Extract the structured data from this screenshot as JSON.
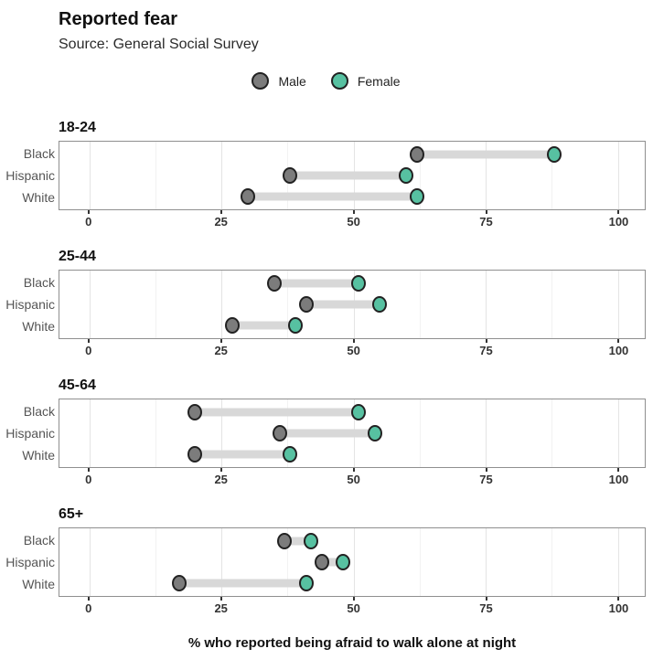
{
  "header": {
    "title": "Reported fear",
    "subtitle": "Source: General Social Survey"
  },
  "legend": {
    "items": [
      {
        "label": "Male",
        "color": "#7c7c7c"
      },
      {
        "label": "Female",
        "color": "#57c1a1"
      }
    ]
  },
  "colors": {
    "male": "#7c7c7c",
    "female": "#57c1a1",
    "dot_border": "#222222",
    "connector": "#d8d8d8",
    "major_grid": "#e4e4e4",
    "minor_grid": "#f2f2f2"
  },
  "axis": {
    "ticks": [
      0,
      25,
      50,
      75,
      100
    ],
    "minor_ticks": [
      12.5,
      37.5,
      62.5,
      87.5
    ],
    "label": "% who reported being afraid to walk alone at night"
  },
  "chart_data": {
    "type": "scatter",
    "subtype": "dumbbell",
    "title": "Reported fear",
    "subtitle": "Source: General Social Survey",
    "xlabel": "% who reported being afraid to walk alone at night",
    "xticks": [
      0,
      25,
      50,
      75,
      100
    ],
    "xlim": [
      -6,
      105
    ],
    "grid": true,
    "legend_position": "top-center",
    "series_names": [
      "Male",
      "Female"
    ],
    "facets": [
      {
        "label": "18-24",
        "categories": [
          "Black",
          "Hispanic",
          "White"
        ],
        "series": [
          {
            "name": "Male",
            "values": [
              62,
              38,
              30
            ]
          },
          {
            "name": "Female",
            "values": [
              88,
              60,
              62
            ]
          }
        ]
      },
      {
        "label": "25-44",
        "categories": [
          "Black",
          "Hispanic",
          "White"
        ],
        "series": [
          {
            "name": "Male",
            "values": [
              35,
              41,
              27
            ]
          },
          {
            "name": "Female",
            "values": [
              51,
              55,
              39
            ]
          }
        ]
      },
      {
        "label": "45-64",
        "categories": [
          "Black",
          "Hispanic",
          "White"
        ],
        "series": [
          {
            "name": "Male",
            "values": [
              20,
              36,
              20
            ]
          },
          {
            "name": "Female",
            "values": [
              51,
              54,
              38
            ]
          }
        ]
      },
      {
        "label": "65+",
        "categories": [
          "Black",
          "Hispanic",
          "White"
        ],
        "series": [
          {
            "name": "Male",
            "values": [
              37,
              44,
              17
            ]
          },
          {
            "name": "Female",
            "values": [
              42,
              48,
              41
            ]
          }
        ]
      }
    ]
  }
}
